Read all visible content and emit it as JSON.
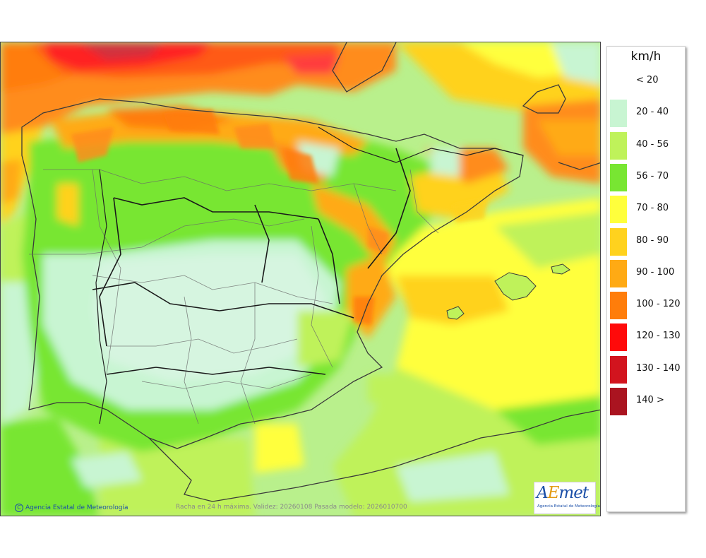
{
  "legend": {
    "title": "km/h",
    "items": [
      {
        "label": "< 20",
        "color": "#ffffff"
      },
      {
        "label": "20 - 40",
        "color": "#c8f5d2"
      },
      {
        "label": "40 - 56",
        "color": "#bff25a"
      },
      {
        "label": "56 - 70",
        "color": "#78e632"
      },
      {
        "label": "70 - 80",
        "color": "#ffff3c"
      },
      {
        "label": "80 - 90",
        "color": "#ffd21e"
      },
      {
        "label": "90 - 100",
        "color": "#ffaa14"
      },
      {
        "label": "100 - 120",
        "color": "#ff7d0a"
      },
      {
        "label": "120 - 130",
        "color": "#ff0a0a"
      },
      {
        "label": "130 - 140",
        "color": "#d2141e"
      },
      {
        "label": "140 >",
        "color": "#aa1420"
      }
    ]
  },
  "map": {
    "credit": "Agencia Estatal de Meteorología",
    "copyright_symbol": "C",
    "caption": "Racha en 24 h máxima. Validez: 20260108 Pasada modelo: 2026010700",
    "logo_text_a": "A",
    "logo_text_e": "E",
    "logo_text_rest": "met",
    "logo_subtitle": "Agencia Estatal de Meteorología"
  }
}
